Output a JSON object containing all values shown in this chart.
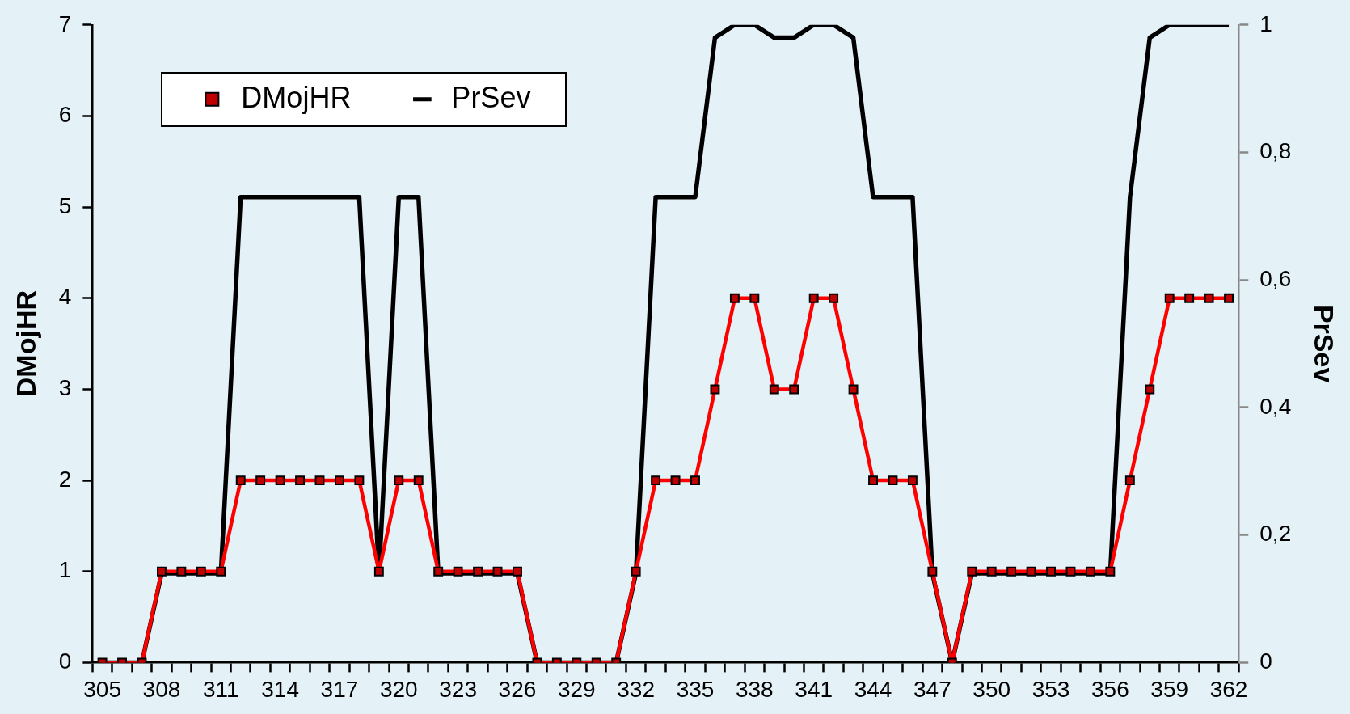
{
  "chart_data": {
    "type": "line",
    "categories": [
      "305",
      null,
      null,
      "308",
      null,
      null,
      "311",
      null,
      null,
      "314",
      null,
      null,
      "317",
      null,
      null,
      "320",
      null,
      null,
      "323",
      null,
      null,
      "326",
      null,
      null,
      "329",
      null,
      null,
      "332",
      null,
      null,
      "335",
      null,
      null,
      "338",
      null,
      null,
      "341",
      null,
      null,
      "344",
      null,
      null,
      "347",
      null,
      null,
      "350",
      null,
      null,
      "353",
      null,
      null,
      "356",
      null,
      null,
      "359",
      null,
      null,
      "362"
    ],
    "series": [
      {
        "name": "DMojHR",
        "color": "#ff0000",
        "marker": "square",
        "values": [
          0,
          0,
          0,
          1,
          1,
          1,
          1,
          2,
          2,
          2,
          2,
          2,
          2,
          2,
          1,
          2,
          2,
          1,
          1,
          1,
          1,
          1,
          0,
          0,
          0,
          0,
          0,
          1,
          2,
          2,
          2,
          3,
          4,
          4,
          3,
          3,
          4,
          4,
          3,
          2,
          2,
          2,
          1,
          0,
          1,
          1,
          1,
          1,
          1,
          1,
          1,
          1,
          2,
          3,
          4,
          4,
          4,
          4
        ]
      },
      {
        "name": "PrSev",
        "color": "#000000",
        "axis": "y2",
        "values": [
          0,
          0,
          0,
          0.14,
          0.14,
          0.14,
          0.14,
          0.73,
          0.73,
          0.73,
          0.73,
          0.73,
          0.73,
          0.73,
          0.14,
          0.73,
          0.73,
          0.14,
          0.14,
          0.14,
          0.14,
          0.14,
          0,
          0,
          0,
          0,
          0,
          0.14,
          0.73,
          0.73,
          0.73,
          0.98,
          1,
          1,
          0.98,
          0.98,
          1,
          1,
          0.98,
          0.73,
          0.73,
          0.73,
          0.14,
          0,
          0.14,
          0.14,
          0.14,
          0.14,
          0.14,
          0.14,
          0.14,
          0.14,
          0.73,
          0.98,
          1,
          1,
          1,
          1
        ]
      }
    ],
    "ylabel": "DMojHR",
    "y2label": "PrSev",
    "ylim": [
      0,
      7
    ],
    "yticks": [
      0,
      1,
      2,
      3,
      4,
      5,
      6,
      7
    ],
    "y2lim": [
      0,
      1
    ],
    "y2ticks": [
      0,
      {
        "value": 0.2,
        "label": "0,2"
      },
      {
        "value": 0.4,
        "label": "0,4"
      },
      {
        "value": 0.6,
        "label": "0,6"
      },
      {
        "value": 0.8,
        "label": "0,8"
      },
      1
    ],
    "legend": "top left",
    "grid": false
  }
}
